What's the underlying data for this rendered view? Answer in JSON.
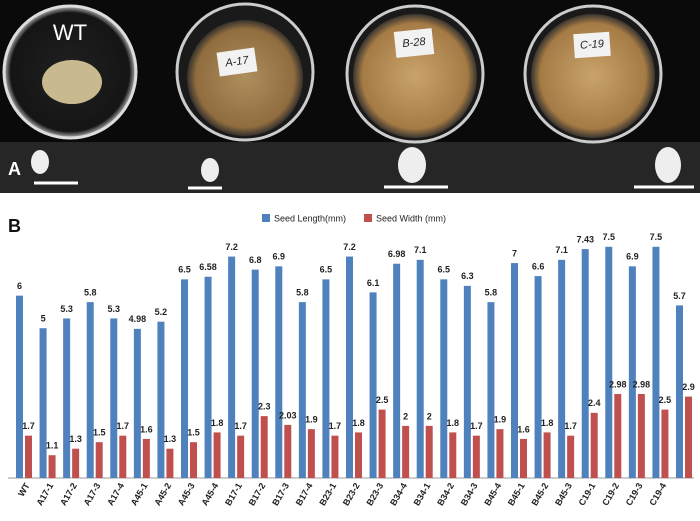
{
  "photo": {
    "panel": "A",
    "dish_labels": [
      "WT",
      "A-17",
      "B-28",
      "C-19"
    ]
  },
  "chart_data": {
    "type": "bar",
    "panel": "B",
    "categories": [
      "WT",
      "A17-1",
      "A17-2",
      "A17-3",
      "A17-4",
      "A45-1",
      "A45-2",
      "A45-3",
      "A45-4",
      "B17-1",
      "B17-2",
      "B17-3",
      "B17-4",
      "B23-1",
      "B23-2",
      "B23-3",
      "B34-4",
      "B34-1",
      "B34-2",
      "B34-3",
      "B45-4",
      "B45-1",
      "B45-2",
      "B45-3",
      "C19-1",
      "C19-2",
      "C19-3",
      "C19-4",
      null
    ],
    "series": [
      {
        "name": "Seed Length(mm)",
        "color": "#4f81bd",
        "values": [
          6,
          5,
          5.3,
          5.8,
          5.3,
          4.98,
          5.2,
          6.5,
          6.58,
          7.2,
          6.8,
          6.9,
          5.8,
          6.5,
          7.2,
          6.1,
          6.98,
          7.1,
          6.5,
          6.3,
          5.8,
          7,
          6.6,
          7.1,
          7.43,
          7.5,
          6.9,
          7.5,
          5.7
        ]
      },
      {
        "name": "Seed Width (mm)",
        "color": "#c0504d",
        "values": [
          1.7,
          1.1,
          1.3,
          1.5,
          1.7,
          1.6,
          1.3,
          1.5,
          1.8,
          1.7,
          2.3,
          2.03,
          1.9,
          1.7,
          1.8,
          2.5,
          2,
          2,
          1.8,
          1.7,
          1.9,
          1.6,
          1.8,
          1.7,
          2.4,
          2.98,
          2.98,
          2.5,
          2.9
        ]
      }
    ],
    "ylim": [
      0.4,
      8.2
    ],
    "legend": "top"
  }
}
